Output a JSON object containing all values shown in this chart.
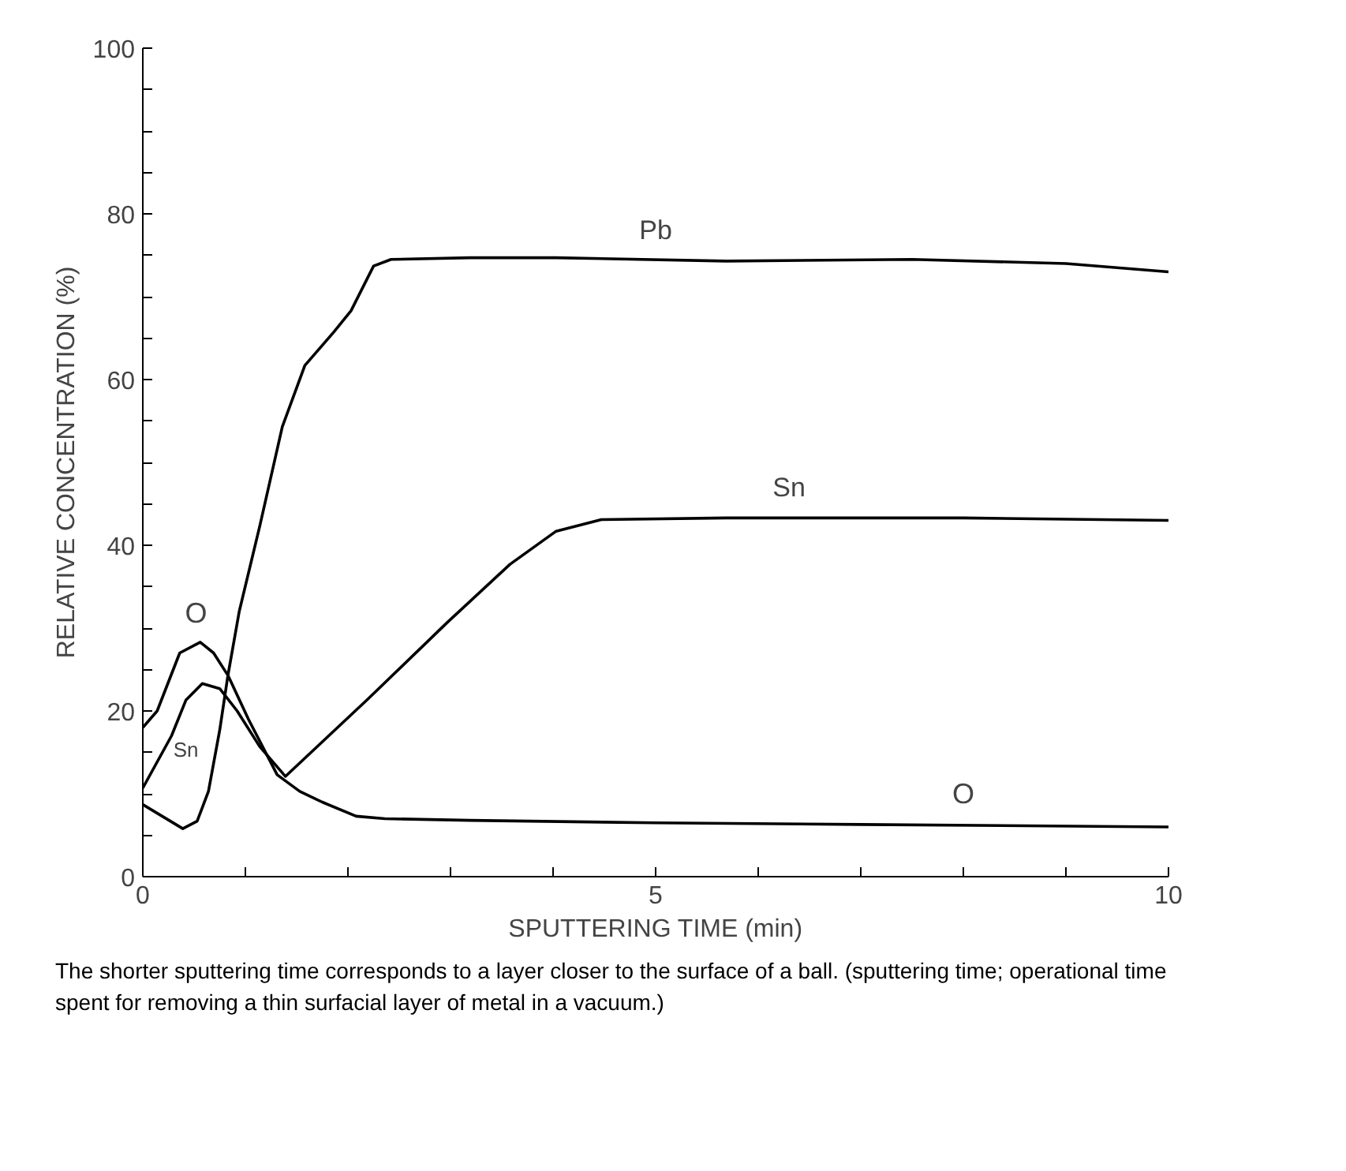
{
  "chart_data": {
    "type": "line",
    "xlabel": "SPUTTERING TIME (min)",
    "ylabel": "RELATIVE CONCENTRATION (%)",
    "xlim": [
      0,
      10
    ],
    "ylim": [
      0,
      100
    ],
    "xticks": [
      0,
      {
        "value": 1,
        "label": null
      },
      {
        "value": 2,
        "label": null
      },
      {
        "value": 3,
        "label": null
      },
      {
        "value": 4,
        "label": null
      },
      5,
      {
        "value": 6,
        "label": null
      },
      {
        "value": 7,
        "label": null
      },
      {
        "value": 8,
        "label": null
      },
      {
        "value": 9,
        "label": null
      },
      10
    ],
    "yticks": [
      0,
      {
        "value": 5,
        "label": null
      },
      {
        "value": 10,
        "label": null
      },
      {
        "value": 15,
        "label": null
      },
      20,
      {
        "value": 25,
        "label": null
      },
      {
        "value": 30,
        "label": null
      },
      {
        "value": 35,
        "label": null
      },
      40,
      {
        "value": 45,
        "label": null
      },
      {
        "value": 50,
        "label": null
      },
      {
        "value": 55,
        "label": null
      },
      60,
      {
        "value": 65,
        "label": null
      },
      {
        "value": 70,
        "label": null
      },
      {
        "value": 75,
        "label": null
      },
      80,
      {
        "value": 85,
        "label": null
      },
      {
        "value": 90,
        "label": null
      },
      {
        "value": 95,
        "label": null
      },
      100
    ],
    "grid": false,
    "legend": false,
    "marker": "none",
    "line_style": "solid",
    "series": [
      {
        "name": "O",
        "color": "#000000",
        "x": [
          0,
          0.14,
          0.36,
          0.56,
          0.69,
          0.83,
          1.03,
          1.31,
          1.53,
          1.75,
          2.08,
          2.36,
          3.19,
          5,
          7,
          10
        ],
        "values": [
          18,
          20,
          27,
          28.3,
          27,
          24.3,
          19,
          12.3,
          10.3,
          9,
          7.3,
          7,
          6.8,
          6.5,
          6.3,
          6
        ]
      },
      {
        "name": "Sn",
        "color": "#000000",
        "x": [
          0,
          0.28,
          0.42,
          0.58,
          0.75,
          0.92,
          1.14,
          1.39,
          2.2,
          2.97,
          3.58,
          4.03,
          4.47,
          5.69,
          8,
          10
        ],
        "values": [
          10.7,
          17,
          21.3,
          23.3,
          22.7,
          20,
          15.7,
          12.1,
          21.5,
          30.7,
          37.7,
          41.7,
          43.1,
          43.3,
          43.3,
          43
        ]
      },
      {
        "name": "Pb",
        "color": "#000000",
        "x": [
          0,
          0.39,
          0.53,
          0.64,
          0.75,
          0.83,
          0.94,
          1.14,
          1.36,
          1.58,
          1.86,
          2.03,
          2.25,
          2.42,
          3.19,
          4.03,
          5.69,
          7.5,
          9,
          10
        ],
        "values": [
          8.7,
          5.8,
          6.7,
          10.3,
          17.7,
          24.3,
          32,
          42.3,
          54.3,
          61.7,
          65.7,
          68.3,
          73.7,
          74.5,
          74.7,
          74.7,
          74.3,
          74.5,
          74,
          73
        ]
      }
    ],
    "annotations": [
      "The shorter sputtering time corresponds to a layer closer to the surface of a ball. (sputtering time; operational time spent for removing a thin surfacial layer of metal in a vacuum.)"
    ]
  }
}
